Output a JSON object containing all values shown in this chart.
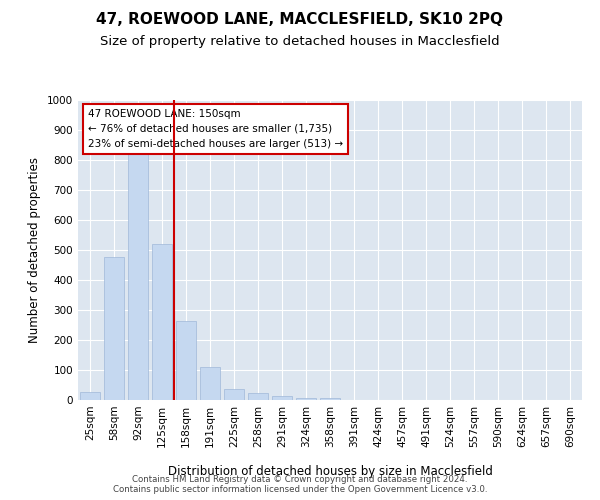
{
  "title": "47, ROEWOOD LANE, MACCLESFIELD, SK10 2PQ",
  "subtitle": "Size of property relative to detached houses in Macclesfield",
  "xlabel": "Distribution of detached houses by size in Macclesfield",
  "ylabel": "Number of detached properties",
  "categories": [
    "25sqm",
    "58sqm",
    "92sqm",
    "125sqm",
    "158sqm",
    "191sqm",
    "225sqm",
    "258sqm",
    "291sqm",
    "324sqm",
    "358sqm",
    "391sqm",
    "424sqm",
    "457sqm",
    "491sqm",
    "524sqm",
    "557sqm",
    "590sqm",
    "624sqm",
    "657sqm",
    "690sqm"
  ],
  "values": [
    28,
    478,
    820,
    520,
    265,
    110,
    38,
    22,
    12,
    7,
    7,
    0,
    0,
    0,
    0,
    0,
    0,
    0,
    0,
    0,
    0
  ],
  "bar_color": "#c5d8f0",
  "bar_edge_color": "#a0b8d8",
  "vline_position": 3.5,
  "vline_color": "#cc0000",
  "annotation_line1": "47 ROEWOOD LANE: 150sqm",
  "annotation_line2": "← 76% of detached houses are smaller (1,735)",
  "annotation_line3": "23% of semi-detached houses are larger (513) →",
  "annotation_box_edgecolor": "#cc0000",
  "ylim": [
    0,
    1000
  ],
  "yticks": [
    0,
    100,
    200,
    300,
    400,
    500,
    600,
    700,
    800,
    900,
    1000
  ],
  "grid_color": "#ffffff",
  "background_color": "#dde6f0",
  "footer_line1": "Contains HM Land Registry data © Crown copyright and database right 2024.",
  "footer_line2": "Contains public sector information licensed under the Open Government Licence v3.0.",
  "title_fontsize": 11,
  "subtitle_fontsize": 9.5,
  "axis_fontsize": 8.5,
  "tick_fontsize": 7.5,
  "footer_fontsize": 6.2
}
